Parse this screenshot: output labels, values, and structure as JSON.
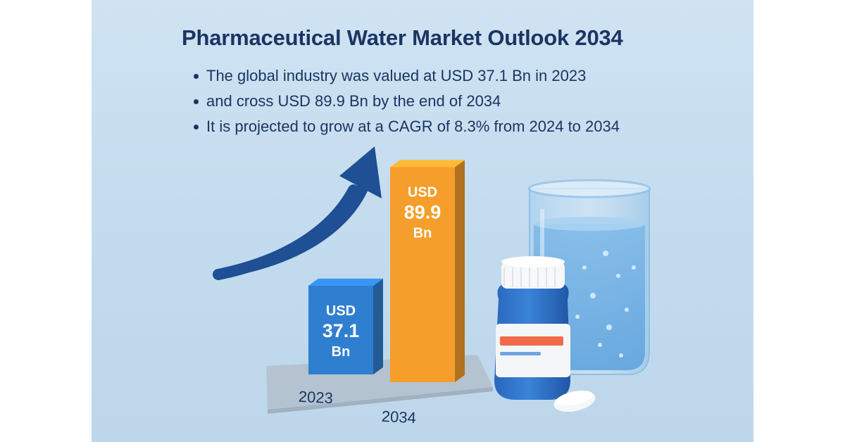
{
  "title": "Pharmaceutical Water Market Outlook 2034",
  "bullets": [
    "The global industry was valued at USD 37.1 Bn in 2023",
    "and cross USD 89.9 Bn by the end of 2034",
    "It is projected to grow at a CAGR of 8.3% from 2024 to 2034"
  ],
  "chart_data": {
    "type": "bar",
    "title": "Pharmaceutical Water Market Outlook 2034",
    "categories": [
      "2023",
      "2034"
    ],
    "values": [
      37.1,
      89.9
    ],
    "unit": "USD Bn",
    "value_labels": [
      {
        "prefix": "USD",
        "value": "37.1",
        "suffix": "Bn"
      },
      {
        "prefix": "USD",
        "value": "89.9",
        "suffix": "Bn"
      }
    ],
    "ylim": [
      0,
      100
    ],
    "trend": "upward arrow",
    "colors": [
      "#2f7fd0",
      "#f59e2b"
    ]
  },
  "colors": {
    "title": "#1b3563",
    "background": "#c7dced",
    "bar_2023": "#2f7fd0",
    "bar_2034": "#f59e2b",
    "arrow": "#1f4f94",
    "bottle": "#2c6ec7"
  },
  "icons": [
    "trend-arrow-icon",
    "medicine-bottle-icon",
    "pill-icon",
    "water-beaker-icon"
  ]
}
